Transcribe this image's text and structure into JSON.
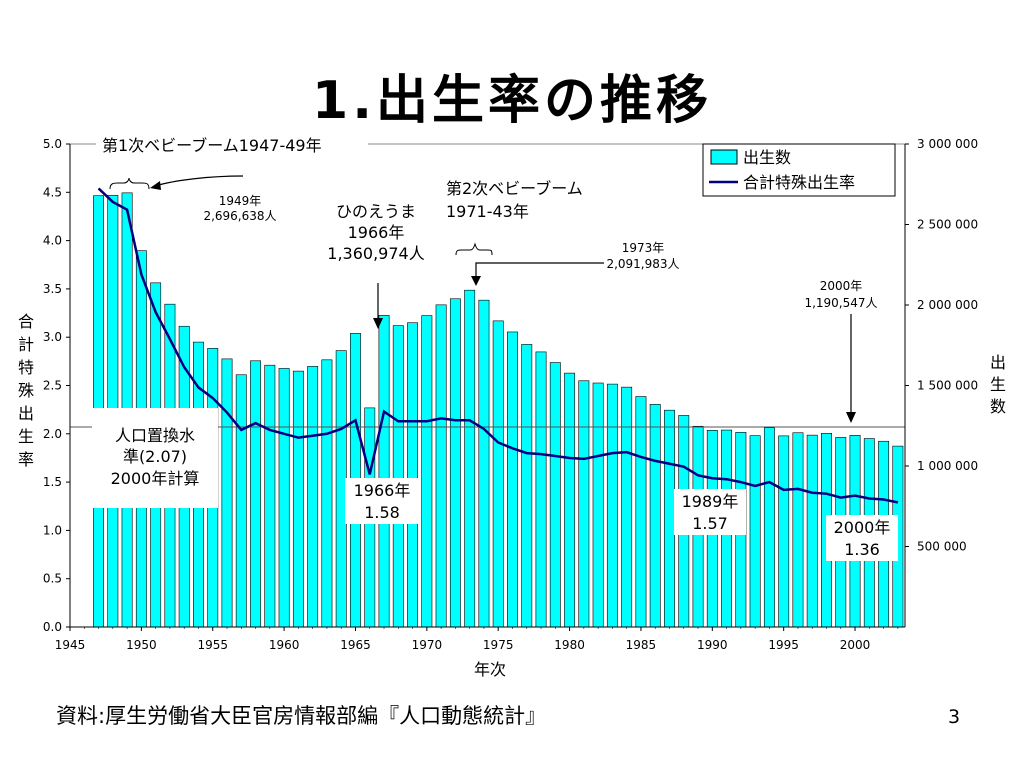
{
  "slide": {
    "title": "1.出生率の推移",
    "source": "資料:厚生労働省大臣官房情報部編『人口動態統計』",
    "page_number": "3"
  },
  "chart_data": {
    "type": "bar",
    "x_label": "年次",
    "y_left_label": "合計特殊出生率",
    "y_right_label": "出生数",
    "x_ticks": [
      "1945",
      "1950",
      "1955",
      "1960",
      "1965",
      "1970",
      "1975",
      "1980",
      "1985",
      "1990",
      "1995",
      "2000"
    ],
    "x_range": [
      1945,
      2003.5
    ],
    "y_left_ticks": [
      "0.0",
      "0.5",
      "1.0",
      "1.5",
      "2.0",
      "2.5",
      "3.0",
      "3.5",
      "4.0",
      "4.5",
      "5.0"
    ],
    "y_left_range": [
      0,
      5
    ],
    "y_right_ticks": [
      "500 000",
      "1 000 000",
      "1 500 000",
      "2 000 000",
      "2 500 000",
      "3 000 000"
    ],
    "y_right_range": [
      0,
      3000000
    ],
    "years": [
      1947,
      1948,
      1949,
      1950,
      1951,
      1952,
      1953,
      1954,
      1955,
      1956,
      1957,
      1958,
      1959,
      1960,
      1961,
      1962,
      1963,
      1964,
      1965,
      1966,
      1967,
      1968,
      1969,
      1970,
      1971,
      1972,
      1973,
      1974,
      1975,
      1976,
      1977,
      1978,
      1979,
      1980,
      1981,
      1982,
      1983,
      1984,
      1985,
      1986,
      1987,
      1988,
      1989,
      1990,
      1991,
      1992,
      1993,
      1994,
      1995,
      1996,
      1997,
      1998,
      1999,
      2000,
      2001,
      2002,
      2003
    ],
    "series": [
      {
        "name": "出生数",
        "type": "bar",
        "color": "#00ffff",
        "values": [
          2678792,
          2681624,
          2696638,
          2337507,
          2137689,
          2005162,
          1868040,
          1769580,
          1730692,
          1665278,
          1566713,
          1653469,
          1626088,
          1606041,
          1589372,
          1618616,
          1659521,
          1716761,
          1823697,
          1360974,
          1935647,
          1871839,
          1889815,
          1934239,
          2000973,
          2038682,
          2091983,
          2029989,
          1901440,
          1832617,
          1755100,
          1708643,
          1642580,
          1576889,
          1529455,
          1515392,
          1508687,
          1489780,
          1431577,
          1382946,
          1346658,
          1314006,
          1246802,
          1221585,
          1223245,
          1208989,
          1188282,
          1238328,
          1187064,
          1206555,
          1191665,
          1203147,
          1177669,
          1190547,
          1170662,
          1153855,
          1123610
        ]
      },
      {
        "name": "合計特殊出生率",
        "type": "line",
        "color": "#000080",
        "values": [
          4.54,
          4.4,
          4.32,
          3.65,
          3.26,
          2.98,
          2.69,
          2.48,
          2.37,
          2.22,
          2.04,
          2.11,
          2.04,
          2.0,
          1.96,
          1.98,
          2.0,
          2.05,
          2.14,
          1.58,
          2.23,
          2.13,
          2.13,
          2.13,
          2.16,
          2.14,
          2.14,
          2.05,
          1.91,
          1.85,
          1.8,
          1.79,
          1.77,
          1.75,
          1.74,
          1.77,
          1.8,
          1.81,
          1.76,
          1.72,
          1.69,
          1.66,
          1.57,
          1.54,
          1.53,
          1.5,
          1.46,
          1.5,
          1.42,
          1.43,
          1.39,
          1.38,
          1.34,
          1.36,
          1.33,
          1.32,
          1.29
        ]
      }
    ],
    "reference_line": {
      "value": 2.07,
      "label": "人口置換水準(2.07)",
      "label_line1": "人口置換水",
      "label_line2": "準(2.07)",
      "label_line3": "2000年計算"
    },
    "annotations": {
      "boom1_title": "第1次ベビーブーム1947-49年",
      "y1949": "1949年",
      "n1949": "2,696,638人",
      "hinoe1": "ひのえうま",
      "hinoe2": "1966年",
      "hinoe3": "1,360,974人",
      "boom2_line1": "第2次ベビーブーム",
      "boom2_line2": "1971-43年",
      "y1973": "1973年",
      "n1973": "2,091,983人",
      "y2000": "2000年",
      "n2000": "1,190,547人",
      "tfr1966_year": "1966年",
      "tfr1966_value": "1.58",
      "tfr1989_year": "1989年",
      "tfr1989_value": "1.57",
      "tfr2000_year": "2000年",
      "tfr2000_value": "1.36"
    }
  }
}
